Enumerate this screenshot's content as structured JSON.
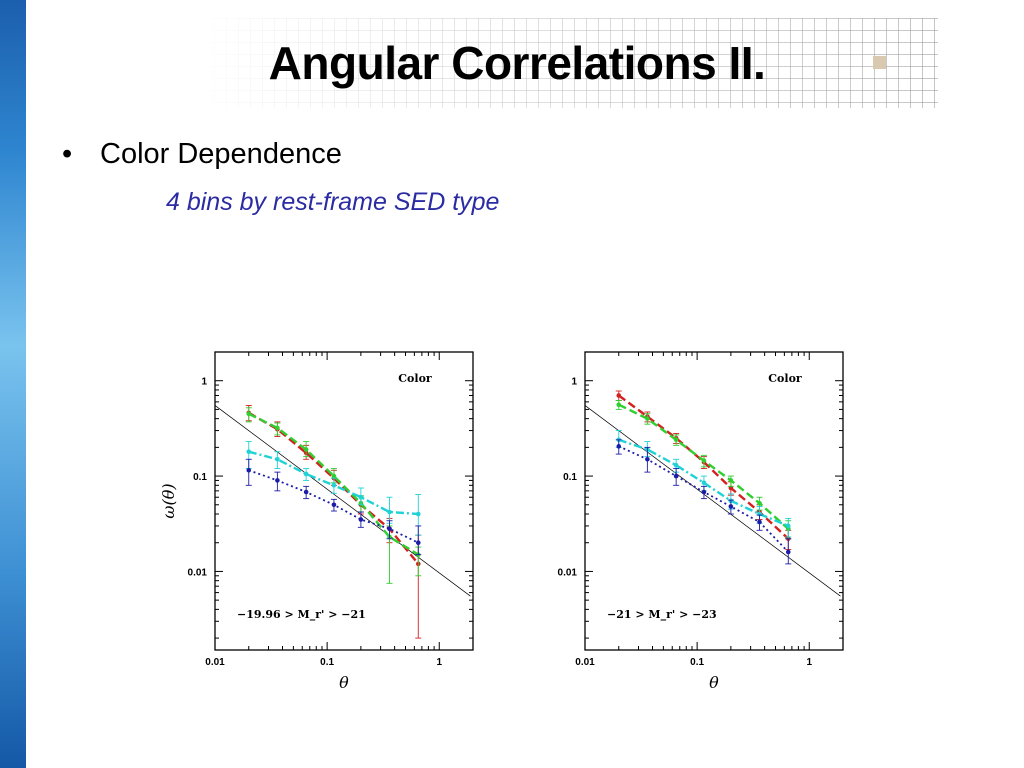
{
  "slide": {
    "title": "Angular Correlations II.",
    "bullet": "Color Dependence",
    "bullet_symbol": "•",
    "sub_bullet": "4 bins by rest-frame SED type"
  },
  "colors": {
    "red": "#d42020",
    "green": "#2fcf2f",
    "cyan": "#1fd2d6",
    "blue": "#1c1ca8",
    "reference_line": "#000000",
    "sub_bullet": "#2b2ba3",
    "accent_bar": "#2f86d0"
  },
  "chart_data": [
    {
      "type": "line",
      "log_x": true,
      "log_y": true,
      "xlim": [
        0.01,
        2
      ],
      "ylim": [
        0.0015,
        2
      ],
      "xlabel": "θ",
      "ylabel": "ω(θ)",
      "x_tick_labels": [
        "0.01",
        "0.1",
        "1"
      ],
      "y_tick_labels": [
        "0.01",
        "0.1",
        "1"
      ],
      "label_top": "Color",
      "label_bottom": "−19.96 > M_r' > −21",
      "x": [
        0.02,
        0.036,
        0.065,
        0.115,
        0.2,
        0.36,
        0.65
      ],
      "reference_line": [
        [
          0.01,
          0.55
        ],
        [
          1.9,
          0.0055
        ]
      ],
      "series": [
        {
          "color_key": "red",
          "style": "dash",
          "values": [
            0.46,
            0.31,
            0.175,
            0.095,
            0.05,
            0.028,
            0.012
          ],
          "err_low": [
            0.38,
            0.26,
            0.15,
            0.08,
            0.04,
            0.02,
            0.002
          ],
          "err_high": [
            0.55,
            0.37,
            0.21,
            0.115,
            0.062,
            0.036,
            0.024
          ]
        },
        {
          "color_key": "green",
          "style": "dash",
          "values": [
            0.45,
            0.32,
            0.19,
            0.1,
            0.052,
            0.023,
            0.015
          ],
          "err_low": [
            0.37,
            0.27,
            0.16,
            0.085,
            0.042,
            0.0075,
            0.009
          ],
          "err_high": [
            0.52,
            0.36,
            0.23,
            0.12,
            0.062,
            0.03,
            0.018
          ]
        },
        {
          "color_key": "cyan",
          "style": "dashdot",
          "values": [
            0.18,
            0.15,
            0.105,
            0.08,
            0.06,
            0.042,
            0.04
          ],
          "err_low": [
            0.12,
            0.12,
            0.09,
            0.066,
            0.05,
            0.032,
            0.024
          ],
          "err_high": [
            0.23,
            0.18,
            0.12,
            0.095,
            0.075,
            0.06,
            0.064
          ]
        },
        {
          "color_key": "blue",
          "style": "dot",
          "values": [
            0.115,
            0.09,
            0.068,
            0.05,
            0.035,
            0.028,
            0.02
          ],
          "err_low": [
            0.08,
            0.07,
            0.058,
            0.043,
            0.029,
            0.022,
            0.015
          ],
          "err_high": [
            0.15,
            0.11,
            0.078,
            0.057,
            0.042,
            0.034,
            0.03
          ]
        }
      ]
    },
    {
      "type": "line",
      "log_x": true,
      "log_y": true,
      "xlim": [
        0.01,
        2
      ],
      "ylim": [
        0.0015,
        2
      ],
      "xlabel": "θ",
      "ylabel": "",
      "x_tick_labels": [
        "0.01",
        "0.1",
        "1"
      ],
      "y_tick_labels": [
        "0.01",
        "0.1",
        "1"
      ],
      "label_top": "Color",
      "label_bottom": "−21 > M_r' > −23",
      "x": [
        0.02,
        0.036,
        0.065,
        0.115,
        0.2,
        0.36,
        0.65
      ],
      "reference_line": [
        [
          0.01,
          0.55
        ],
        [
          1.9,
          0.0055
        ]
      ],
      "series": [
        {
          "color_key": "red",
          "style": "dash",
          "values": [
            0.7,
            0.42,
            0.25,
            0.14,
            0.075,
            0.042,
            0.022
          ],
          "err_low": [
            0.62,
            0.37,
            0.22,
            0.12,
            0.063,
            0.035,
            0.017
          ],
          "err_high": [
            0.78,
            0.47,
            0.28,
            0.16,
            0.087,
            0.05,
            0.027
          ]
        },
        {
          "color_key": "green",
          "style": "dash",
          "values": [
            0.56,
            0.4,
            0.24,
            0.145,
            0.09,
            0.052,
            0.028
          ],
          "err_low": [
            0.5,
            0.35,
            0.21,
            0.125,
            0.078,
            0.044,
            0.022
          ],
          "err_high": [
            0.62,
            0.45,
            0.27,
            0.165,
            0.1,
            0.06,
            0.034
          ]
        },
        {
          "color_key": "cyan",
          "style": "dashdot",
          "values": [
            0.24,
            0.19,
            0.13,
            0.085,
            0.055,
            0.04,
            0.03
          ],
          "err_low": [
            0.2,
            0.16,
            0.11,
            0.07,
            0.045,
            0.032,
            0.023
          ],
          "err_high": [
            0.3,
            0.23,
            0.15,
            0.1,
            0.065,
            0.048,
            0.036
          ]
        },
        {
          "color_key": "blue",
          "style": "dot",
          "values": [
            0.205,
            0.15,
            0.1,
            0.068,
            0.048,
            0.033,
            0.016
          ],
          "err_low": [
            0.17,
            0.11,
            0.08,
            0.058,
            0.04,
            0.027,
            0.012
          ],
          "err_high": [
            0.24,
            0.2,
            0.12,
            0.078,
            0.056,
            0.039,
            0.022
          ]
        }
      ]
    }
  ]
}
